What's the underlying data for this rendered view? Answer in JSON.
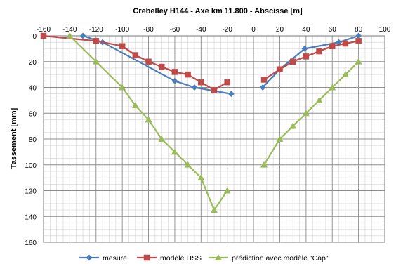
{
  "chart_data": {
    "type": "line",
    "title": "Crebelley H144 - Axe km 11.800 - Abscisse [m]",
    "xlabel": "",
    "ylabel": "Tassement  [mm]",
    "xlim": [
      -160,
      100
    ],
    "ylim": [
      0,
      160
    ],
    "y_inverted": true,
    "x_axis_position": "top",
    "x_ticks": [
      -160,
      -140,
      -120,
      -100,
      -80,
      -60,
      -40,
      -20,
      0,
      20,
      40,
      60,
      80,
      100
    ],
    "y_ticks": [
      0,
      20,
      40,
      60,
      80,
      100,
      120,
      140,
      160
    ],
    "grid": {
      "major": true,
      "minor": true,
      "minor_step_x": 5,
      "minor_step_y": 5
    },
    "legend_position": "bottom",
    "series": [
      {
        "name": "mesure",
        "color": "#4a7ebb",
        "marker": "diamond",
        "segments": [
          [
            [
              -130,
              0
            ],
            [
              -115,
              5
            ],
            [
              -60,
              35
            ],
            [
              -45,
              40
            ],
            [
              -17,
              45
            ]
          ],
          [
            [
              7,
              40
            ],
            [
              20,
              26
            ],
            [
              39,
              10
            ],
            [
              65,
              5
            ],
            [
              80,
              0
            ]
          ]
        ]
      },
      {
        "name": "modèle HSS",
        "color": "#be4b48",
        "marker": "square",
        "segments": [
          [
            [
              -160,
              0
            ],
            [
              -120,
              4
            ],
            [
              -100,
              8
            ],
            [
              -90,
              15
            ],
            [
              -80,
              20
            ],
            [
              -70,
              24
            ],
            [
              -60,
              28
            ],
            [
              -50,
              30
            ],
            [
              -40,
              36
            ],
            [
              -30,
              42
            ],
            [
              -20,
              36
            ]
          ],
          [
            [
              8,
              34
            ],
            [
              20,
              26
            ],
            [
              30,
              20
            ],
            [
              40,
              16
            ],
            [
              50,
              12
            ],
            [
              60,
              8
            ],
            [
              70,
              6
            ],
            [
              80,
              4
            ]
          ]
        ]
      },
      {
        "name": "prédiction avec modèle \"Cap\"",
        "color": "#9bbb59",
        "marker": "triangle",
        "segments": [
          [
            [
              -140,
              0
            ],
            [
              -120,
              20
            ],
            [
              -100,
              40
            ],
            [
              -90,
              54
            ],
            [
              -80,
              65
            ],
            [
              -70,
              80
            ],
            [
              -60,
              90
            ],
            [
              -50,
              100
            ],
            [
              -40,
              110
            ],
            [
              -30,
              135
            ],
            [
              -20,
              120
            ]
          ],
          [
            [
              8,
              100
            ],
            [
              20,
              80
            ],
            [
              30,
              70
            ],
            [
              40,
              60
            ],
            [
              50,
              50
            ],
            [
              60,
              40
            ],
            [
              70,
              30
            ],
            [
              80,
              20
            ]
          ]
        ]
      }
    ]
  }
}
